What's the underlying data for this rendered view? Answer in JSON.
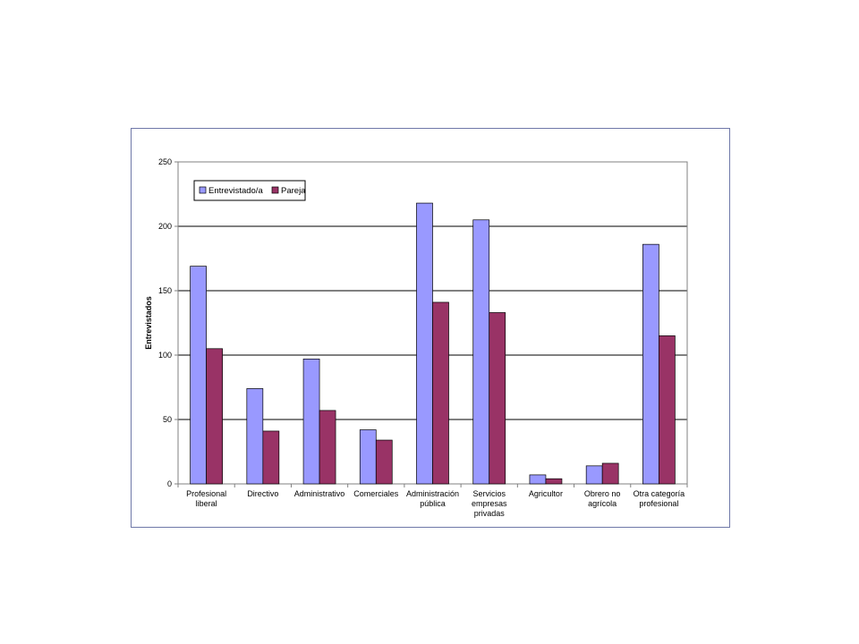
{
  "chart_data": {
    "type": "bar",
    "categories": [
      [
        "Profesional",
        "liberal"
      ],
      [
        "Directivo"
      ],
      [
        "Administrativo"
      ],
      [
        "Comerciales"
      ],
      [
        "Administración",
        "pública"
      ],
      [
        "Servicios",
        "empresas",
        "privadas"
      ],
      [
        "Agricultor"
      ],
      [
        "Obrero no",
        "agrícola"
      ],
      [
        "Otra categoría",
        "profesional"
      ]
    ],
    "series": [
      {
        "name": "Entrevistado/a",
        "color": "#9999ff",
        "values": [
          169,
          74,
          97,
          42,
          218,
          205,
          7,
          14,
          186
        ]
      },
      {
        "name": "Pareja",
        "color": "#993366",
        "values": [
          105,
          41,
          57,
          34,
          141,
          133,
          4,
          16,
          115
        ]
      }
    ],
    "ylabel": "Entrevistados",
    "ylim": [
      0,
      250
    ],
    "yticks": [
      0,
      50,
      100,
      150,
      200,
      250
    ],
    "grid": true,
    "legend_position": "top-left"
  }
}
